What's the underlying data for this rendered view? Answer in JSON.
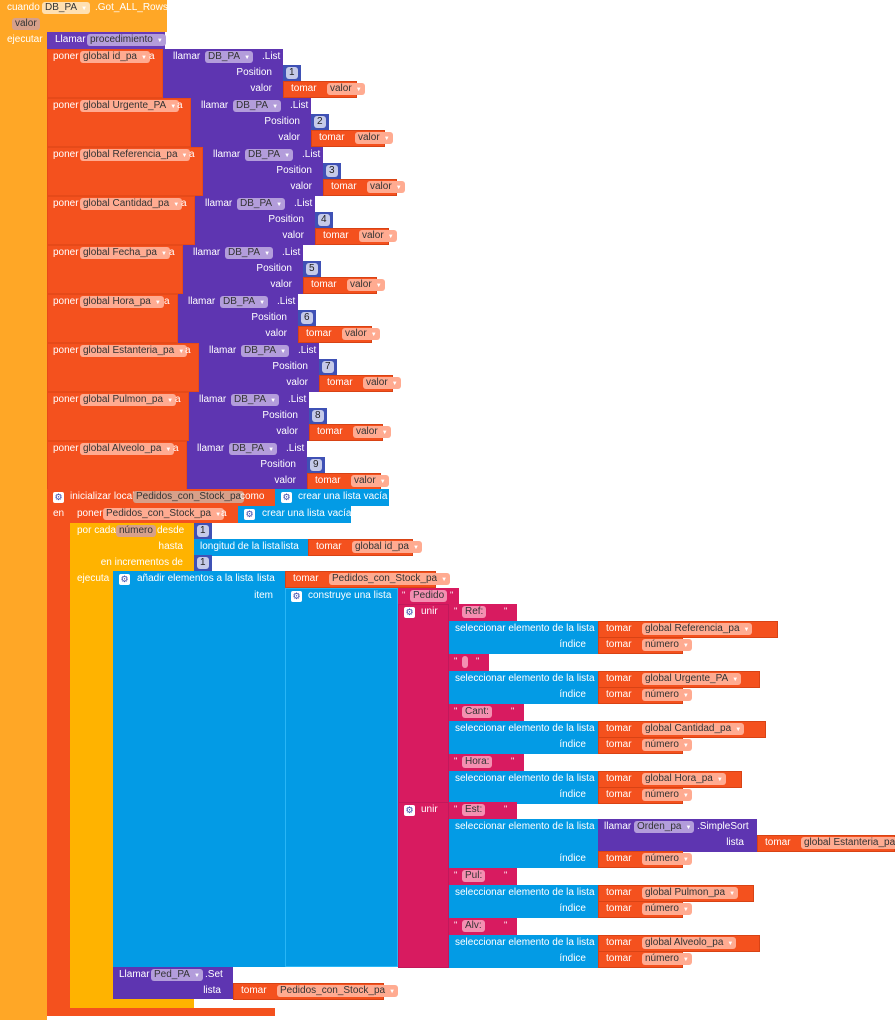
{
  "colors": {
    "event": "#FFA726",
    "set": "#F4511E",
    "component": "#5E35B1",
    "number": "#3F51B5",
    "list": "#039BE5",
    "text": "#D81B60",
    "control": "#FFB300",
    "procedure": "#673AB7"
  },
  "event": {
    "when": "cuando",
    "component": "DB_PA",
    "event_name": ".Got_ALL_Rows",
    "param": "valor",
    "do": "ejecutar"
  },
  "call_procedure": {
    "call": "Llamar",
    "name": "procedimiento"
  },
  "set_rows": [
    {
      "set": "poner",
      "variable": "global id_pa",
      "to": "a",
      "call": "llamar",
      "component": "DB_PA",
      "method": ".List",
      "position_label": "Position",
      "position": "1",
      "value_label": "valor",
      "get": "tomar",
      "get_var": "valor"
    },
    {
      "set": "poner",
      "variable": "global Urgente_PA",
      "to": "a",
      "call": "llamar",
      "component": "DB_PA",
      "method": ".List",
      "position_label": "Position",
      "position": "2",
      "value_label": "valor",
      "get": "tomar",
      "get_var": "valor"
    },
    {
      "set": "poner",
      "variable": "global Referencia_pa",
      "to": "a",
      "call": "llamar",
      "component": "DB_PA",
      "method": ".List",
      "position_label": "Position",
      "position": "3",
      "value_label": "valor",
      "get": "tomar",
      "get_var": "valor"
    },
    {
      "set": "poner",
      "variable": "global Cantidad_pa",
      "to": "a",
      "call": "llamar",
      "component": "DB_PA",
      "method": ".List",
      "position_label": "Position",
      "position": "4",
      "value_label": "valor",
      "get": "tomar",
      "get_var": "valor"
    },
    {
      "set": "poner",
      "variable": "global Fecha_pa",
      "to": "a",
      "call": "llamar",
      "component": "DB_PA",
      "method": ".List",
      "position_label": "Position",
      "position": "5",
      "value_label": "valor",
      "get": "tomar",
      "get_var": "valor"
    },
    {
      "set": "poner",
      "variable": "global Hora_pa",
      "to": "a",
      "call": "llamar",
      "component": "DB_PA",
      "method": ".List",
      "position_label": "Position",
      "position": "6",
      "value_label": "valor",
      "get": "tomar",
      "get_var": "valor"
    },
    {
      "set": "poner",
      "variable": "global Estanteria_pa",
      "to": "a",
      "call": "llamar",
      "component": "DB_PA",
      "method": ".List",
      "position_label": "Position",
      "position": "7",
      "value_label": "valor",
      "get": "tomar",
      "get_var": "valor"
    },
    {
      "set": "poner",
      "variable": "global Pulmon_pa",
      "to": "a",
      "call": "llamar",
      "component": "DB_PA",
      "method": ".List",
      "position_label": "Position",
      "position": "8",
      "value_label": "valor",
      "get": "tomar",
      "get_var": "valor"
    },
    {
      "set": "poner",
      "variable": "global Alveolo_pa",
      "to": "a",
      "call": "llamar",
      "component": "DB_PA",
      "method": ".List",
      "position_label": "Position",
      "position": "9",
      "value_label": "valor",
      "get": "tomar",
      "get_var": "valor"
    }
  ],
  "local_init": {
    "label": "inicializar local",
    "name": "Pedidos_con_Stock_pa",
    "as": "como",
    "create_empty": "crear una lista vacía",
    "in": "en"
  },
  "set_local": {
    "set": "poner",
    "variable": "Pedidos_con_Stock_pa",
    "to": "a",
    "create_empty": "crear una lista vacía"
  },
  "for_range": {
    "label": "por cada",
    "var": "número",
    "from": "desde",
    "from_value": "1",
    "to": "hasta",
    "length_label": "longitud de la lista",
    "list_label": "lista",
    "get": "tomar",
    "list_var": "global id_pa",
    "by": "en incrementos de",
    "by_value": "1",
    "do": "ejecuta"
  },
  "add_items": {
    "label": "añadir elementos a la lista",
    "list_label": "lista",
    "get": "tomar",
    "list_var": "Pedidos_con_Stock_pa",
    "item_label": "item",
    "make_list": "construye una lista",
    "first_text": "Pedido"
  },
  "joins": [
    {
      "label": "unir",
      "parts": [
        {
          "text": "Ref:",
          "select": "seleccionar elemento de la lista",
          "get": "tomar",
          "list_var": "global Referencia_pa",
          "index_label": "índice",
          "index_var": "número"
        },
        {
          "text": "",
          "select": "seleccionar elemento de la lista",
          "get": "tomar",
          "list_var": "global Urgente_PA",
          "index_label": "índice",
          "index_var": "número"
        },
        {
          "text": "Cant:",
          "select": "seleccionar elemento de la lista",
          "get": "tomar",
          "list_var": "global Cantidad_pa",
          "index_label": "índice",
          "index_var": "número"
        },
        {
          "text": "Hora:",
          "select": "seleccionar elemento de la lista",
          "get": "tomar",
          "list_var": "global Hora_pa",
          "index_label": "índice",
          "index_var": "número"
        }
      ]
    },
    {
      "label": "unir",
      "parts": [
        {
          "text": "Est:",
          "select": "seleccionar elemento de la lista",
          "get": "tomar",
          "list_var": "",
          "index_label": "índice",
          "index_var": "número"
        },
        {
          "text": "Pul:",
          "select": "seleccionar elemento de la lista",
          "get": "tomar",
          "list_var": "global Pulmon_pa",
          "index_label": "índice",
          "index_var": "número"
        },
        {
          "text": "Alv:",
          "select": "seleccionar elemento de la lista",
          "get": "tomar",
          "list_var": "global Alveolo_pa",
          "index_label": "índice",
          "index_var": "número"
        }
      ]
    }
  ],
  "sort_call": {
    "call": "llamar",
    "component": "Orden_pa",
    "method": ".SimpleSort",
    "list_label": "lista",
    "get": "tomar",
    "list_var": "global Estanteria_pa"
  },
  "set_call": {
    "call": "Llamar",
    "component": "Ped_PA",
    "method": ".Set",
    "list_label": "lista",
    "get": "tomar",
    "list_var": "Pedidos_con_Stock_pa"
  }
}
